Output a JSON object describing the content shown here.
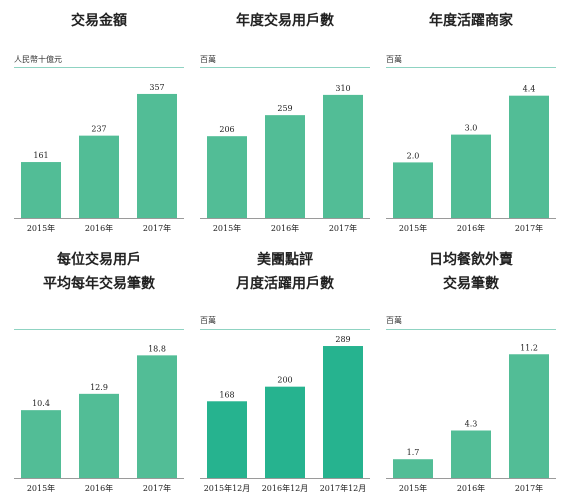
{
  "colors": {
    "bar": "#52bd96",
    "bar_alt": "#26b38f",
    "rule": "#8fd3c2",
    "axis": "#9a9a9a",
    "text": "#222222"
  },
  "chart_data": [
    {
      "type": "bar",
      "title_lines": [
        "交易金額"
      ],
      "unit": "人民幣十億元",
      "categories": [
        "2015年",
        "2016年",
        "2017年"
      ],
      "values": [
        161,
        237,
        357
      ],
      "labels": [
        "161",
        "237",
        "357"
      ],
      "ylim": [
        0,
        400
      ],
      "color": "#52bd96"
    },
    {
      "type": "bar",
      "title_lines": [
        "年度交易用戶數"
      ],
      "unit": "百萬",
      "categories": [
        "2015年",
        "2016年",
        "2017年"
      ],
      "values": [
        206,
        259,
        310
      ],
      "labels": [
        "206",
        "259",
        "310"
      ],
      "ylim": [
        0,
        350
      ],
      "color": "#52bd96"
    },
    {
      "type": "bar",
      "title_lines": [
        "年度活躍商家"
      ],
      "unit": "百萬",
      "categories": [
        "2015年",
        "2016年",
        "2017年"
      ],
      "values": [
        2.0,
        3.0,
        4.4
      ],
      "labels": [
        "2.0",
        "3.0",
        "4.4"
      ],
      "ylim": [
        0,
        5
      ],
      "color": "#52bd96"
    },
    {
      "type": "bar",
      "title_lines": [
        "每位交易用戶",
        "平均每年交易筆數"
      ],
      "unit": "",
      "categories": [
        "2015年",
        "2016年",
        "2017年"
      ],
      "values": [
        10.4,
        12.9,
        18.8
      ],
      "labels": [
        "10.4",
        "12.9",
        "18.8"
      ],
      "ylim": [
        0,
        21
      ],
      "color": "#52bd96"
    },
    {
      "type": "bar",
      "title_lines": [
        "美團點評",
        "月度活躍用戶數"
      ],
      "unit": "百萬",
      "categories": [
        "2015年12月",
        "2016年12月",
        "2017年12月"
      ],
      "values": [
        168,
        200,
        289
      ],
      "labels": [
        "168",
        "200",
        "289"
      ],
      "ylim": [
        0,
        300
      ],
      "color": "#26b38f"
    },
    {
      "type": "bar",
      "title_lines": [
        "日均餐飲外賣",
        "交易筆數"
      ],
      "unit": "百萬",
      "categories": [
        "2015年",
        "2016年",
        "2017年"
      ],
      "values": [
        1.7,
        4.3,
        11.2
      ],
      "labels": [
        "1.7",
        "4.3",
        "11.2"
      ],
      "ylim": [
        0,
        12.4
      ],
      "color": "#52bd96"
    }
  ]
}
